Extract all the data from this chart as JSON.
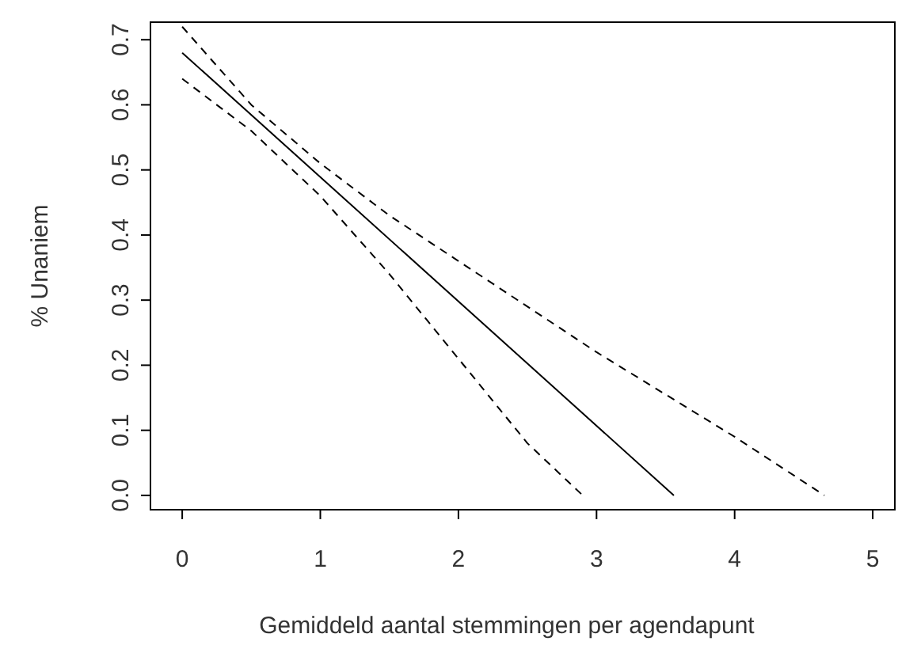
{
  "chart_data": {
    "type": "line",
    "xlabel": "Gemiddeld aantal stemmingen per agendapunt",
    "ylabel": "% Unaniem",
    "xlim": [
      -0.23,
      5.16
    ],
    "ylim": [
      -0.022,
      0.727
    ],
    "xticks": [
      0,
      1,
      2,
      3,
      4,
      5
    ],
    "yticks": [
      {
        "value": 0,
        "label": "0.0"
      },
      0.1,
      0.2,
      0.3,
      0.4,
      0.5,
      0.6,
      0.7
    ],
    "grid": false,
    "series": [
      {
        "color": "#000000",
        "line_style": "solid",
        "x": [
          0,
          3.56
        ],
        "values": [
          0.68,
          0
        ]
      },
      {
        "color": "#000000",
        "line_style": "dashed",
        "x": [
          0,
          0.5,
          1,
          1.5,
          2,
          2.5,
          3,
          3.5,
          4,
          4.65
        ],
        "values": [
          0.72,
          0.6,
          0.51,
          0.43,
          0.36,
          0.29,
          0.22,
          0.155,
          0.09,
          0
        ]
      },
      {
        "color": "#000000",
        "line_style": "dashed",
        "x": [
          0,
          0.5,
          1,
          1.5,
          2,
          2.5,
          2.9
        ],
        "values": [
          0.64,
          0.56,
          0.46,
          0.34,
          0.21,
          0.08,
          0
        ]
      }
    ]
  }
}
